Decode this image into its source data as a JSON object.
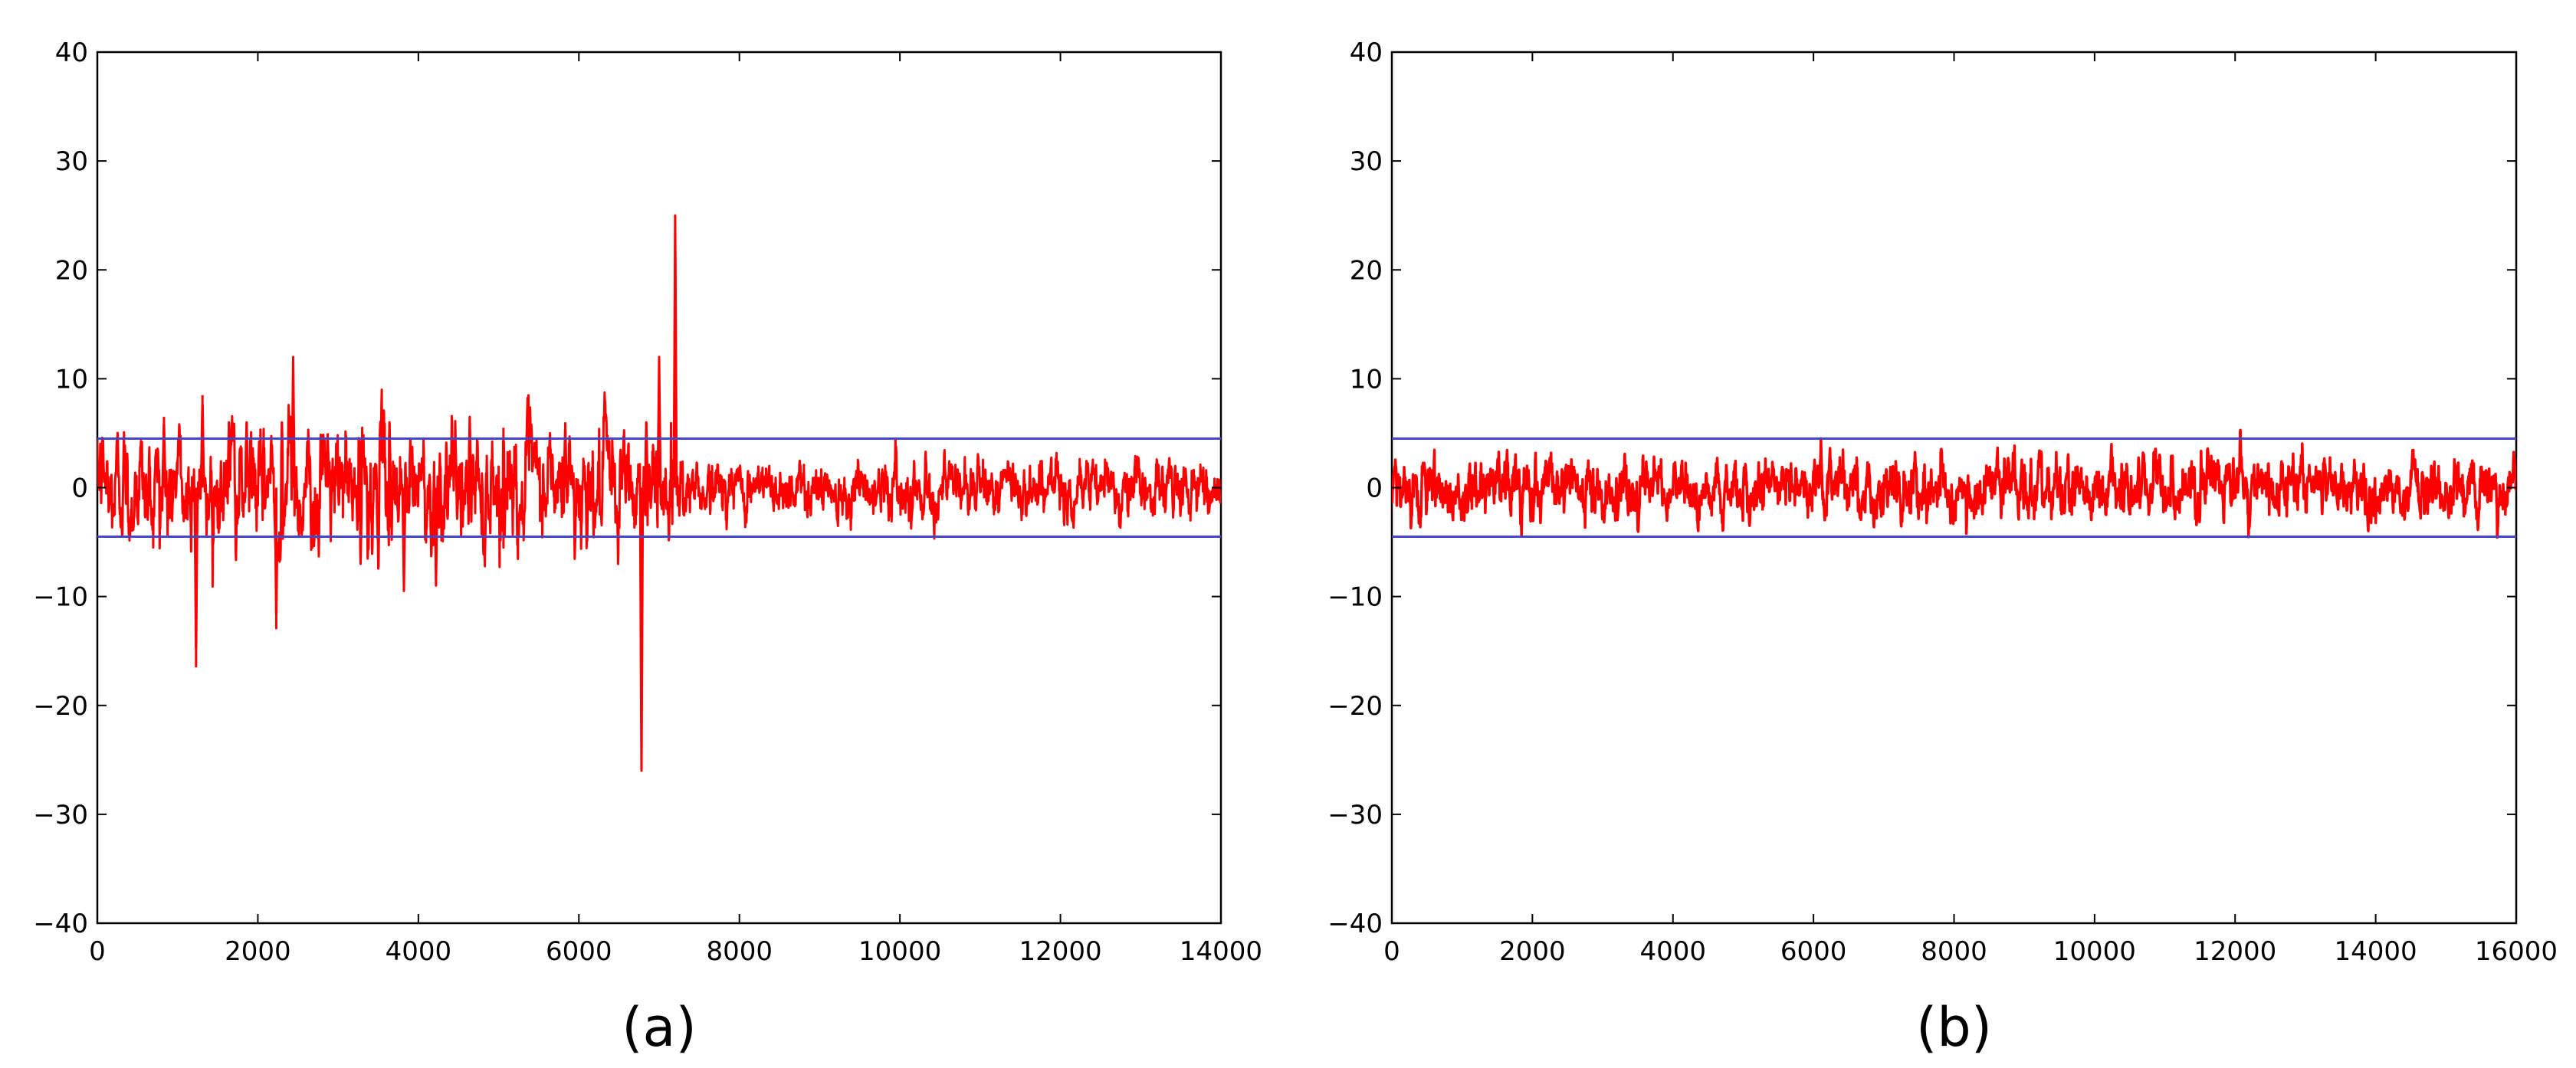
{
  "colors": {
    "signal": "#ff0000",
    "threshold": "#4444cc",
    "axes": "#000000",
    "background": "#ffffff"
  },
  "chart_data": [
    {
      "type": "line",
      "panel_label": "(a)",
      "xlim": [
        0,
        14000
      ],
      "ylim": [
        -40,
        40
      ],
      "x_ticks": [
        0,
        2000,
        4000,
        6000,
        8000,
        10000,
        12000,
        14000
      ],
      "y_ticks": [
        40,
        30,
        20,
        10,
        0,
        -10,
        -20,
        -30,
        -40
      ],
      "x_tick_labels": [
        "0",
        "2000",
        "4000",
        "6000",
        "8000",
        "10000",
        "12000",
        "14000"
      ],
      "y_tick_labels": [
        "40",
        "30",
        "20",
        "10",
        "0",
        "−10",
        "−20",
        "−30",
        "−40"
      ],
      "grid": false,
      "hlines": [
        4.5,
        -4.5
      ],
      "signal_points": 14000,
      "signal_noise_std": 1.2,
      "spikes": [
        {
          "x": 830,
          "y": 6.5
        },
        {
          "x": 1230,
          "y": -16.5
        },
        {
          "x": 1310,
          "y": 8.5
        },
        {
          "x": 1640,
          "y": 6
        },
        {
          "x": 1860,
          "y": 6
        },
        {
          "x": 2230,
          "y": -13
        },
        {
          "x": 2300,
          "y": 6
        },
        {
          "x": 2440,
          "y": 12
        },
        {
          "x": 2870,
          "y": 5
        },
        {
          "x": 3280,
          "y": -7
        },
        {
          "x": 3640,
          "y": 6
        },
        {
          "x": 3820,
          "y": -9.5
        },
        {
          "x": 3900,
          "y": 4.5
        },
        {
          "x": 4220,
          "y": -9
        },
        {
          "x": 4640,
          "y": 6.5
        },
        {
          "x": 5060,
          "y": 5.5
        },
        {
          "x": 5830,
          "y": 6
        },
        {
          "x": 6780,
          "y": -26
        },
        {
          "x": 6840,
          "y": 6
        },
        {
          "x": 7000,
          "y": 12
        },
        {
          "x": 7200,
          "y": 25
        }
      ],
      "volatile_until": 7300
    },
    {
      "type": "line",
      "panel_label": "(b)",
      "xlim": [
        0,
        16000
      ],
      "ylim": [
        -40,
        40
      ],
      "x_ticks": [
        0,
        2000,
        4000,
        6000,
        8000,
        10000,
        12000,
        14000,
        16000
      ],
      "y_ticks": [
        40,
        30,
        20,
        10,
        0,
        -10,
        -20,
        -30,
        -40
      ],
      "x_tick_labels": [
        "0",
        "2000",
        "4000",
        "6000",
        "8000",
        "10000",
        "12000",
        "14000",
        "16000"
      ],
      "y_tick_labels": [
        "40",
        "30",
        "20",
        "10",
        "0",
        "−10",
        "−20",
        "−30",
        "−40"
      ],
      "grid": false,
      "hlines": [
        4.5,
        -4.5
      ],
      "signal_points": 16000,
      "signal_noise_std": 1.3,
      "spikes": [],
      "volatile_until": 0
    }
  ]
}
